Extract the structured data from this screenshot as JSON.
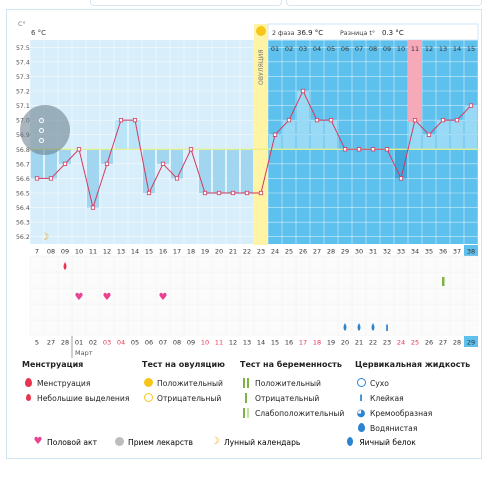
{
  "axis": {
    "unit": "C°",
    "y_ticks": [
      "57.5",
      "57.4",
      "57.3",
      "57.2",
      "57.1",
      "57.0",
      "56.9",
      "56.8",
      "56.7",
      "56.6",
      "56.5",
      "56.4",
      "56.3",
      "56.2"
    ]
  },
  "header": {
    "left_partial": "6 °C",
    "phase2_label": "2 фаза",
    "phase2_value": "36.9 °C",
    "diff_label": "Разница t°",
    "diff_value": "0.3 °C"
  },
  "ovulation_label": "ОВУЛЯЦИЯ",
  "phase2_days": [
    "01",
    "02",
    "03",
    "04",
    "05",
    "06",
    "07",
    "08",
    "09",
    "10",
    "11",
    "12",
    "13",
    "14",
    "15"
  ],
  "cycle_days": [
    "7",
    "08",
    "09",
    "10",
    "11",
    "12",
    "13",
    "14",
    "15",
    "16",
    "17",
    "18",
    "19",
    "20",
    "21",
    "22",
    "23",
    "24",
    "25",
    "26",
    "27",
    "28",
    "29",
    "30",
    "31",
    "32",
    "33",
    "34",
    "35",
    "36",
    "37",
    "38"
  ],
  "date_labels": [
    "5",
    "27",
    "28",
    "01",
    "02",
    "03",
    "04",
    "05",
    "06",
    "07",
    "08",
    "09",
    "10",
    "11",
    "12",
    "13",
    "14",
    "15",
    "16",
    "17",
    "18",
    "19",
    "20",
    "21",
    "22",
    "23",
    "24",
    "25",
    "26",
    "27",
    "28",
    "29"
  ],
  "month_label": "Март",
  "chart_data": {
    "type": "line",
    "x": [
      "7",
      "08",
      "09",
      "10",
      "11",
      "12",
      "13",
      "14",
      "15",
      "16",
      "17",
      "18",
      "19",
      "20",
      "21",
      "22",
      "23",
      "24",
      "25",
      "26",
      "27",
      "28",
      "29",
      "30",
      "31",
      "32",
      "33",
      "34",
      "35",
      "36",
      "37",
      "38"
    ],
    "series": [
      {
        "values": [
          56.6,
          56.6,
          56.7,
          56.8,
          56.4,
          56.7,
          57.0,
          57.0,
          56.5,
          56.7,
          56.6,
          56.8,
          56.5,
          56.5,
          56.5,
          56.5,
          56.5,
          56.9,
          57.0,
          57.2,
          57.0,
          57.0,
          56.8,
          56.8,
          56.8,
          56.8,
          56.6,
          57.0,
          56.9,
          57.0,
          57.0,
          57.1
        ]
      }
    ],
    "coverline": 56.8,
    "ylim": [
      56.15,
      57.55
    ],
    "ovulation_day": "23",
    "highlight_day": "34",
    "grid": true
  },
  "legend": {
    "menstruation_title": "Менструация",
    "menstruation": "Менструация",
    "spotting": "Небольшие выделения",
    "ovulation_test_title": "Тест на овуляцию",
    "ov_positive": "Положительный",
    "ov_negative": "Отрицательный",
    "pregnancy_test_title": "Тест на беременность",
    "pr_positive": "Положительный",
    "pr_negative": "Отрицательный",
    "pr_weak": "Слабоположительный",
    "fluid_title": "Цервикальная жидкость",
    "fl_dry": "Сухо",
    "fl_sticky": "Клейкая",
    "fl_creamy": "Кремообразная",
    "fl_watery": "Водянистая",
    "fl_egg": "Яичный белок",
    "intercourse": "Половой акт",
    "medication": "Прием лекарств",
    "lunar": "Лунный календарь"
  },
  "colors": {
    "phase1_bg": "#d8effb",
    "phase2_bg": "#5ec0ec",
    "ovulation": "#fff3a6",
    "highlight": "#f6a9b9",
    "line": "#d23a5e",
    "coverline": "#e6f18a",
    "accent": "#3aa0d8"
  }
}
